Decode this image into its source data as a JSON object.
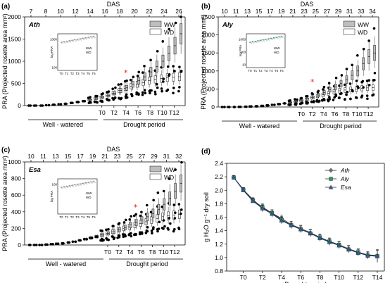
{
  "chart_data": [
    {
      "panel": "(a)",
      "type": "box",
      "species": "Ath",
      "ylabel": "PRA (Projected rosette area mm²)",
      "top_axis_label": "DAS",
      "top_ticks": [
        "7",
        "8",
        "10",
        "12",
        "14",
        "16",
        "18",
        "20",
        "22",
        "24",
        "26"
      ],
      "ylim": [
        0,
        2000
      ],
      "yticks": [
        "0",
        "500",
        "1000",
        "1500",
        "2000"
      ],
      "bottom_ticks": [
        "T0",
        "T2",
        "T4",
        "T6",
        "T8",
        "T10",
        "T12"
      ],
      "period_labels": [
        "Well - watered",
        "Drought period"
      ],
      "legend": [
        "WW",
        "WD"
      ],
      "star_at": "T5",
      "ww_medians": [
        0,
        0,
        0,
        10,
        20,
        30,
        40,
        60,
        80,
        100,
        130,
        160,
        190,
        230,
        280,
        340,
        400,
        480,
        560,
        650,
        760,
        880,
        1000,
        1180,
        1350,
        1620
      ],
      "wd_medians": [
        0,
        0,
        0,
        10,
        20,
        30,
        40,
        60,
        80,
        100,
        130,
        160,
        190,
        230,
        280,
        340,
        390,
        440,
        480,
        520,
        560,
        590,
        610,
        630,
        640,
        650
      ],
      "inset": {
        "ylabel": "log PRA",
        "yticks": [
          "1000",
          "100"
        ],
        "xticks": [
          "T0",
          "T1",
          "T2",
          "T3",
          "T4",
          "T5",
          "T6"
        ],
        "legend": [
          "WW",
          "WD"
        ]
      }
    },
    {
      "panel": "(b)",
      "type": "box",
      "species": "Aly",
      "ylabel": "PRA (Projected rosette area mm²)",
      "top_axis_label": "DAS",
      "top_ticks": [
        "10",
        "11",
        "13",
        "15",
        "17",
        "19",
        "21",
        "23",
        "25",
        "27",
        "29",
        "31",
        "33",
        "34"
      ],
      "ylim": [
        0,
        2500
      ],
      "yticks": [
        "0",
        "500",
        "1000",
        "1500",
        "2000",
        "2500"
      ],
      "bottom_ticks": [
        "T0",
        "T2",
        "T4",
        "T6",
        "T8",
        "T10",
        "T12"
      ],
      "period_labels": [
        "Well - watered",
        "Drought period"
      ],
      "legend": [
        "WW",
        "WD"
      ],
      "star_at": "T3",
      "ww_medians": [
        0,
        0,
        0,
        5,
        10,
        15,
        20,
        30,
        45,
        60,
        80,
        100,
        125,
        150,
        180,
        220,
        270,
        330,
        400,
        480,
        560,
        650,
        760,
        880,
        1000,
        1200,
        1400,
        1500
      ],
      "wd_medians": [
        0,
        0,
        0,
        5,
        10,
        15,
        20,
        30,
        45,
        60,
        80,
        100,
        125,
        150,
        180,
        220,
        260,
        300,
        340,
        380,
        420,
        450,
        470,
        490,
        500,
        520,
        530,
        540
      ],
      "inset": {
        "ylabel": "log PRA",
        "yticks": [
          "1000",
          "100",
          "10"
        ],
        "xticks": [
          "T0",
          "T1",
          "T2",
          "T3",
          "T4",
          "T5",
          "T6"
        ],
        "legend": [
          "WW",
          "WD"
        ]
      }
    },
    {
      "panel": "(c)",
      "type": "box",
      "species": "Esa",
      "ylabel": "PRA (Projected rosette area mm²)",
      "top_axis_label": "DAS",
      "top_ticks": [
        "10",
        "11",
        "13",
        "15",
        "17",
        "19",
        "21",
        "23",
        "25",
        "27",
        "29",
        "31",
        "32"
      ],
      "ylim": [
        0,
        1000
      ],
      "yticks": [
        "0",
        "200",
        "400",
        "600",
        "800",
        "1000"
      ],
      "bottom_ticks": [
        "T0",
        "T2",
        "T4",
        "T6",
        "T8",
        "T10",
        "T12"
      ],
      "period_labels": [
        "Well - watered",
        "Drought period"
      ],
      "legend": [
        "WW",
        "WD"
      ],
      "star_at": "T6",
      "ww_medians": [
        0,
        0,
        0,
        5,
        10,
        15,
        20,
        30,
        40,
        55,
        70,
        85,
        100,
        120,
        140,
        160,
        185,
        210,
        240,
        270,
        300,
        340,
        380,
        430,
        490,
        560,
        650,
        740
      ],
      "wd_medians": [
        0,
        0,
        0,
        5,
        10,
        15,
        20,
        30,
        40,
        55,
        70,
        85,
        100,
        120,
        140,
        160,
        180,
        200,
        220,
        240,
        260,
        280,
        300,
        320,
        340,
        350,
        360,
        370
      ],
      "inset": {
        "ylabel": "log PRA",
        "yticks": [
          "100"
        ],
        "xticks": [
          "T0",
          "T1",
          "T2",
          "T3",
          "T4",
          "T5",
          "T6"
        ],
        "legend": [
          "WW",
          "WD"
        ]
      }
    },
    {
      "panel": "(d)",
      "type": "line",
      "ylabel": "g H₂O g⁻¹ dry soil",
      "xlabel": "Drought period",
      "ylim": [
        0.8,
        2.4
      ],
      "yticks": [
        "0.8",
        "1.0",
        "1.2",
        "1.4",
        "1.6",
        "1.8",
        "2.0",
        "2.2",
        "2.4"
      ],
      "x": [
        "T-1",
        "T0",
        "T1",
        "T2",
        "T3",
        "T4",
        "T5",
        "T6",
        "T7",
        "T8",
        "T9",
        "T10",
        "T11",
        "T12",
        "T13",
        "T14"
      ],
      "xticks": [
        "T0",
        "T2",
        "T4",
        "T6",
        "T8",
        "T10",
        "T12",
        "T14"
      ],
      "series": [
        {
          "name": "Ath",
          "color": "#6f6f6f",
          "values": [
            2.19,
            2.01,
            1.86,
            1.74,
            1.66,
            1.58,
            1.49,
            1.43,
            1.37,
            1.3,
            1.24,
            1.19,
            1.13,
            1.08,
            1.04,
            1.03
          ]
        },
        {
          "name": "Aly",
          "color": "#2e9c6a",
          "values": [
            2.19,
            2.01,
            1.85,
            1.75,
            1.66,
            1.56,
            1.48,
            1.42,
            1.36,
            1.3,
            1.24,
            1.19,
            1.12,
            1.08,
            1.03,
            1.02
          ]
        },
        {
          "name": "Esa",
          "color": "#2f5d9f",
          "values": [
            2.19,
            2.0,
            1.84,
            1.73,
            1.65,
            1.55,
            1.48,
            1.42,
            1.36,
            1.29,
            1.23,
            1.18,
            1.12,
            1.07,
            1.03,
            1.02
          ]
        }
      ]
    }
  ]
}
